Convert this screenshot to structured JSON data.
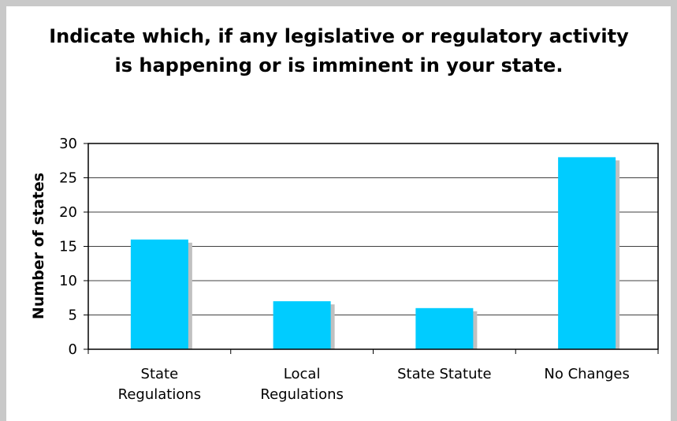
{
  "chart_data": {
    "type": "bar",
    "title": "Indicate which, if any legislative or regulatory activity is happening or is imminent in your state.",
    "ylabel": "Number of states",
    "xlabel": "",
    "categories": [
      [
        "State",
        "Regulations"
      ],
      [
        "Local",
        "Regulations"
      ],
      [
        "State Statute"
      ],
      [
        "No Changes"
      ]
    ],
    "values": [
      16,
      7,
      6,
      28
    ],
    "ylim": [
      0,
      30
    ],
    "yticks": [
      0,
      5,
      10,
      15,
      20,
      25,
      30
    ],
    "grid": true,
    "legend": "none",
    "colors": {
      "bar": "#00ccff",
      "bar_shadow": "#c0c0c0",
      "grid": "#000000"
    }
  }
}
